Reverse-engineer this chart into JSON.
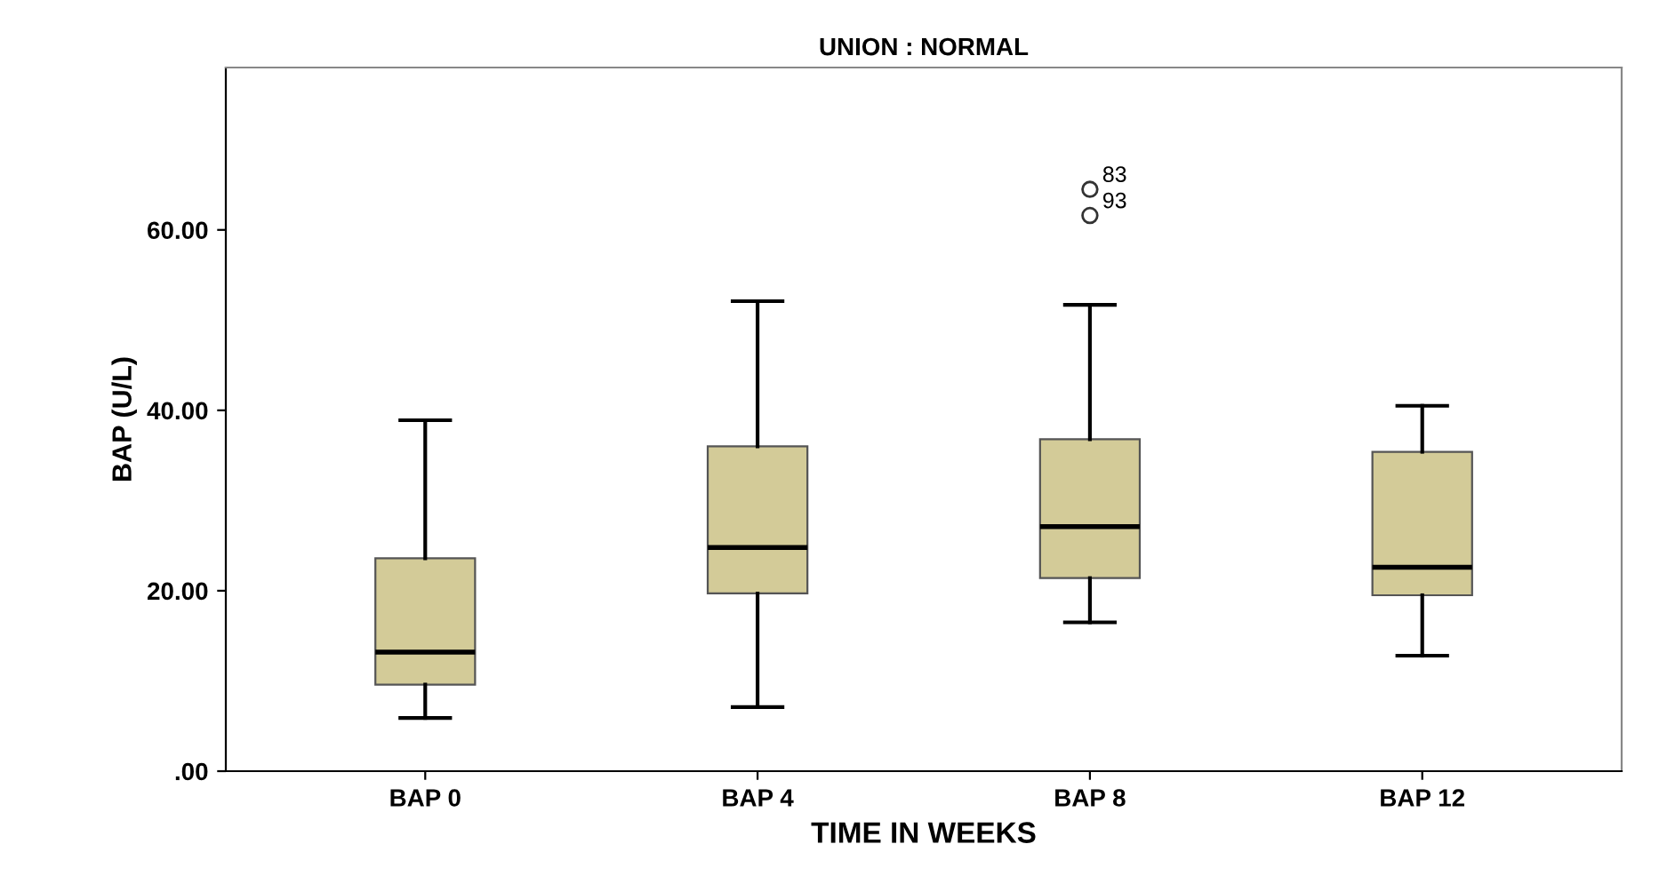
{
  "chart_data": {
    "type": "box",
    "title": "UNION : NORMAL",
    "xlabel": "TIME IN WEEKS",
    "ylabel": "BAP (U/L)",
    "categories": [
      "BAP 0",
      "BAP 4",
      "BAP 8",
      "BAP 12"
    ],
    "boxes": [
      {
        "low": 5.9,
        "q1": 9.6,
        "median": 13.2,
        "q3": 23.6,
        "high": 38.9
      },
      {
        "low": 7.1,
        "q1": 19.7,
        "median": 24.8,
        "q3": 36.0,
        "high": 52.1
      },
      {
        "low": 16.5,
        "q1": 21.4,
        "median": 27.1,
        "q3": 36.8,
        "high": 51.7,
        "outliers": [
          64.5,
          61.6
        ]
      },
      {
        "low": 12.8,
        "q1": 19.5,
        "median": 22.6,
        "q3": 35.4,
        "high": 40.5
      }
    ],
    "color": "#d3cb98",
    "ylim": [
      0,
      78
    ],
    "yticks": [
      {
        "value": 0,
        "label": ".00"
      },
      {
        "value": 20,
        "label": "20.00"
      },
      {
        "value": 40,
        "label": "40.00"
      },
      {
        "value": 60,
        "label": "60.00"
      }
    ],
    "annotations": [
      "83",
      "93"
    ],
    "grid": false
  }
}
